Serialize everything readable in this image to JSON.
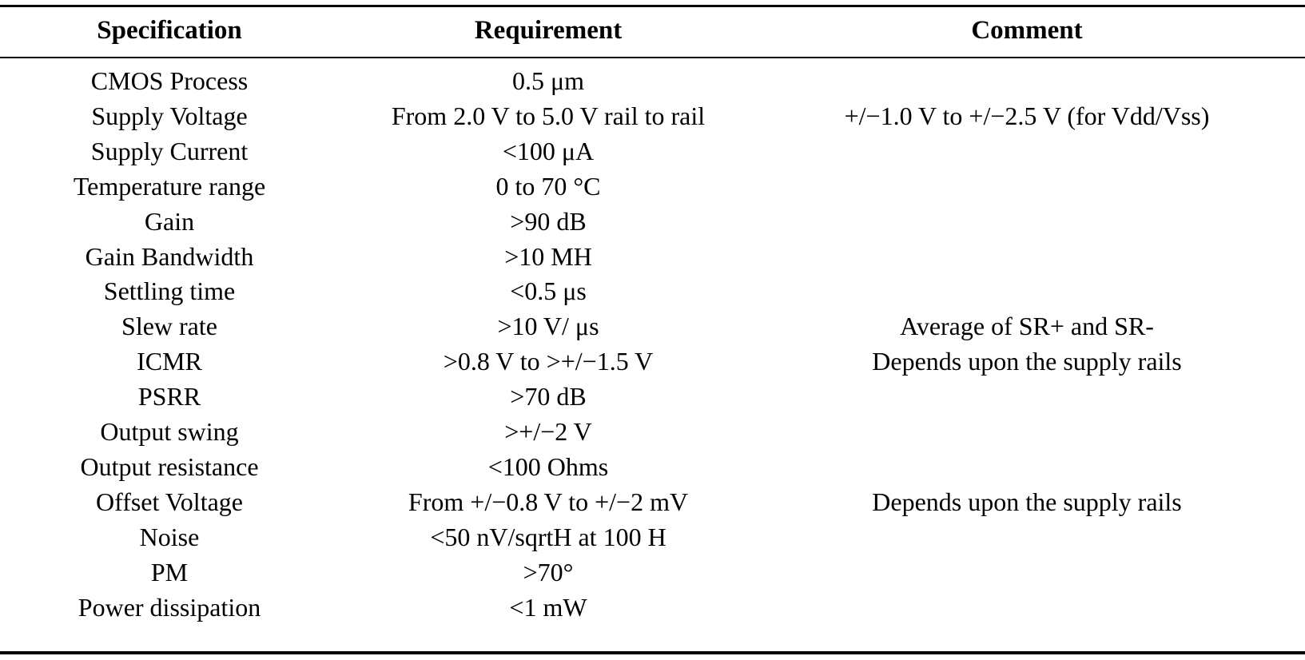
{
  "table": {
    "headers": [
      "Specification",
      "Requirement",
      "Comment"
    ],
    "rows": [
      {
        "spec": "CMOS Process",
        "requirement": "0.5 μm",
        "comment": ""
      },
      {
        "spec": "Supply Voltage",
        "requirement": "From 2.0 V to 5.0 V rail to rail",
        "comment": "+/−1.0 V to +/−2.5 V (for Vdd/Vss)"
      },
      {
        "spec": "Supply Current",
        "requirement": "<100 μA",
        "comment": ""
      },
      {
        "spec": "Temperature range",
        "requirement": "0 to 70 °C",
        "comment": ""
      },
      {
        "spec": "Gain",
        "requirement": ">90 dB",
        "comment": ""
      },
      {
        "spec": "Gain Bandwidth",
        "requirement": ">10 MH",
        "comment": ""
      },
      {
        "spec": "Settling time",
        "requirement": "<0.5 μs",
        "comment": ""
      },
      {
        "spec": "Slew rate",
        "requirement": ">10 V/ μs",
        "comment": "Average of SR+ and SR-"
      },
      {
        "spec": "ICMR",
        "requirement": ">0.8 V to >+/−1.5 V",
        "comment": "Depends upon the supply rails"
      },
      {
        "spec": "PSRR",
        "requirement": ">70 dB",
        "comment": ""
      },
      {
        "spec": "Output swing",
        "requirement": ">+/−2 V",
        "comment": ""
      },
      {
        "spec": "Output resistance",
        "requirement": "<100 Ohms",
        "comment": ""
      },
      {
        "spec": "Offset Voltage",
        "requirement": "From +/−0.8 V to +/−2 mV",
        "comment": "Depends upon the supply rails"
      },
      {
        "spec": "Noise",
        "requirement": "<50 nV/sqrtH at 100 H",
        "comment": ""
      },
      {
        "spec": "PM",
        "requirement": ">70°",
        "comment": ""
      },
      {
        "spec": "Power dissipation",
        "requirement": "<1 mW",
        "comment": ""
      }
    ]
  }
}
